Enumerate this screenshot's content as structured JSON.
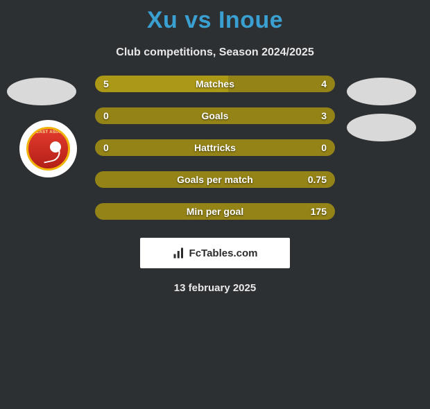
{
  "title": "Xu vs Inoue",
  "subheading": "Club competitions, Season 2024/2025",
  "date": "13 february 2025",
  "attribution": "FcTables.com",
  "colors": {
    "background": "#2d3033",
    "title": "#3aa0d1",
    "text": "#ffffff",
    "barLeft": "#ab9817",
    "barRight": "#948316",
    "barNeutral": "#948316",
    "avatar": "#d9d9d9",
    "barHeight": 24,
    "barRadius": 12,
    "rowGap": 22,
    "rowsWidth": 346
  },
  "rows": [
    {
      "label": "Matches",
      "left": "5",
      "right": "4",
      "leftNum": 5,
      "rightNum": 4
    },
    {
      "label": "Goals",
      "left": "0",
      "right": "3",
      "leftNum": 0,
      "rightNum": 3
    },
    {
      "label": "Hattricks",
      "left": "0",
      "right": "0",
      "leftNum": 0,
      "rightNum": 0
    },
    {
      "label": "Goals per match",
      "left": "",
      "right": "0.75",
      "leftNum": 0,
      "rightNum": 0.75
    },
    {
      "label": "Min per goal",
      "left": "",
      "right": "175",
      "leftNum": 0,
      "rightNum": 175
    }
  ]
}
